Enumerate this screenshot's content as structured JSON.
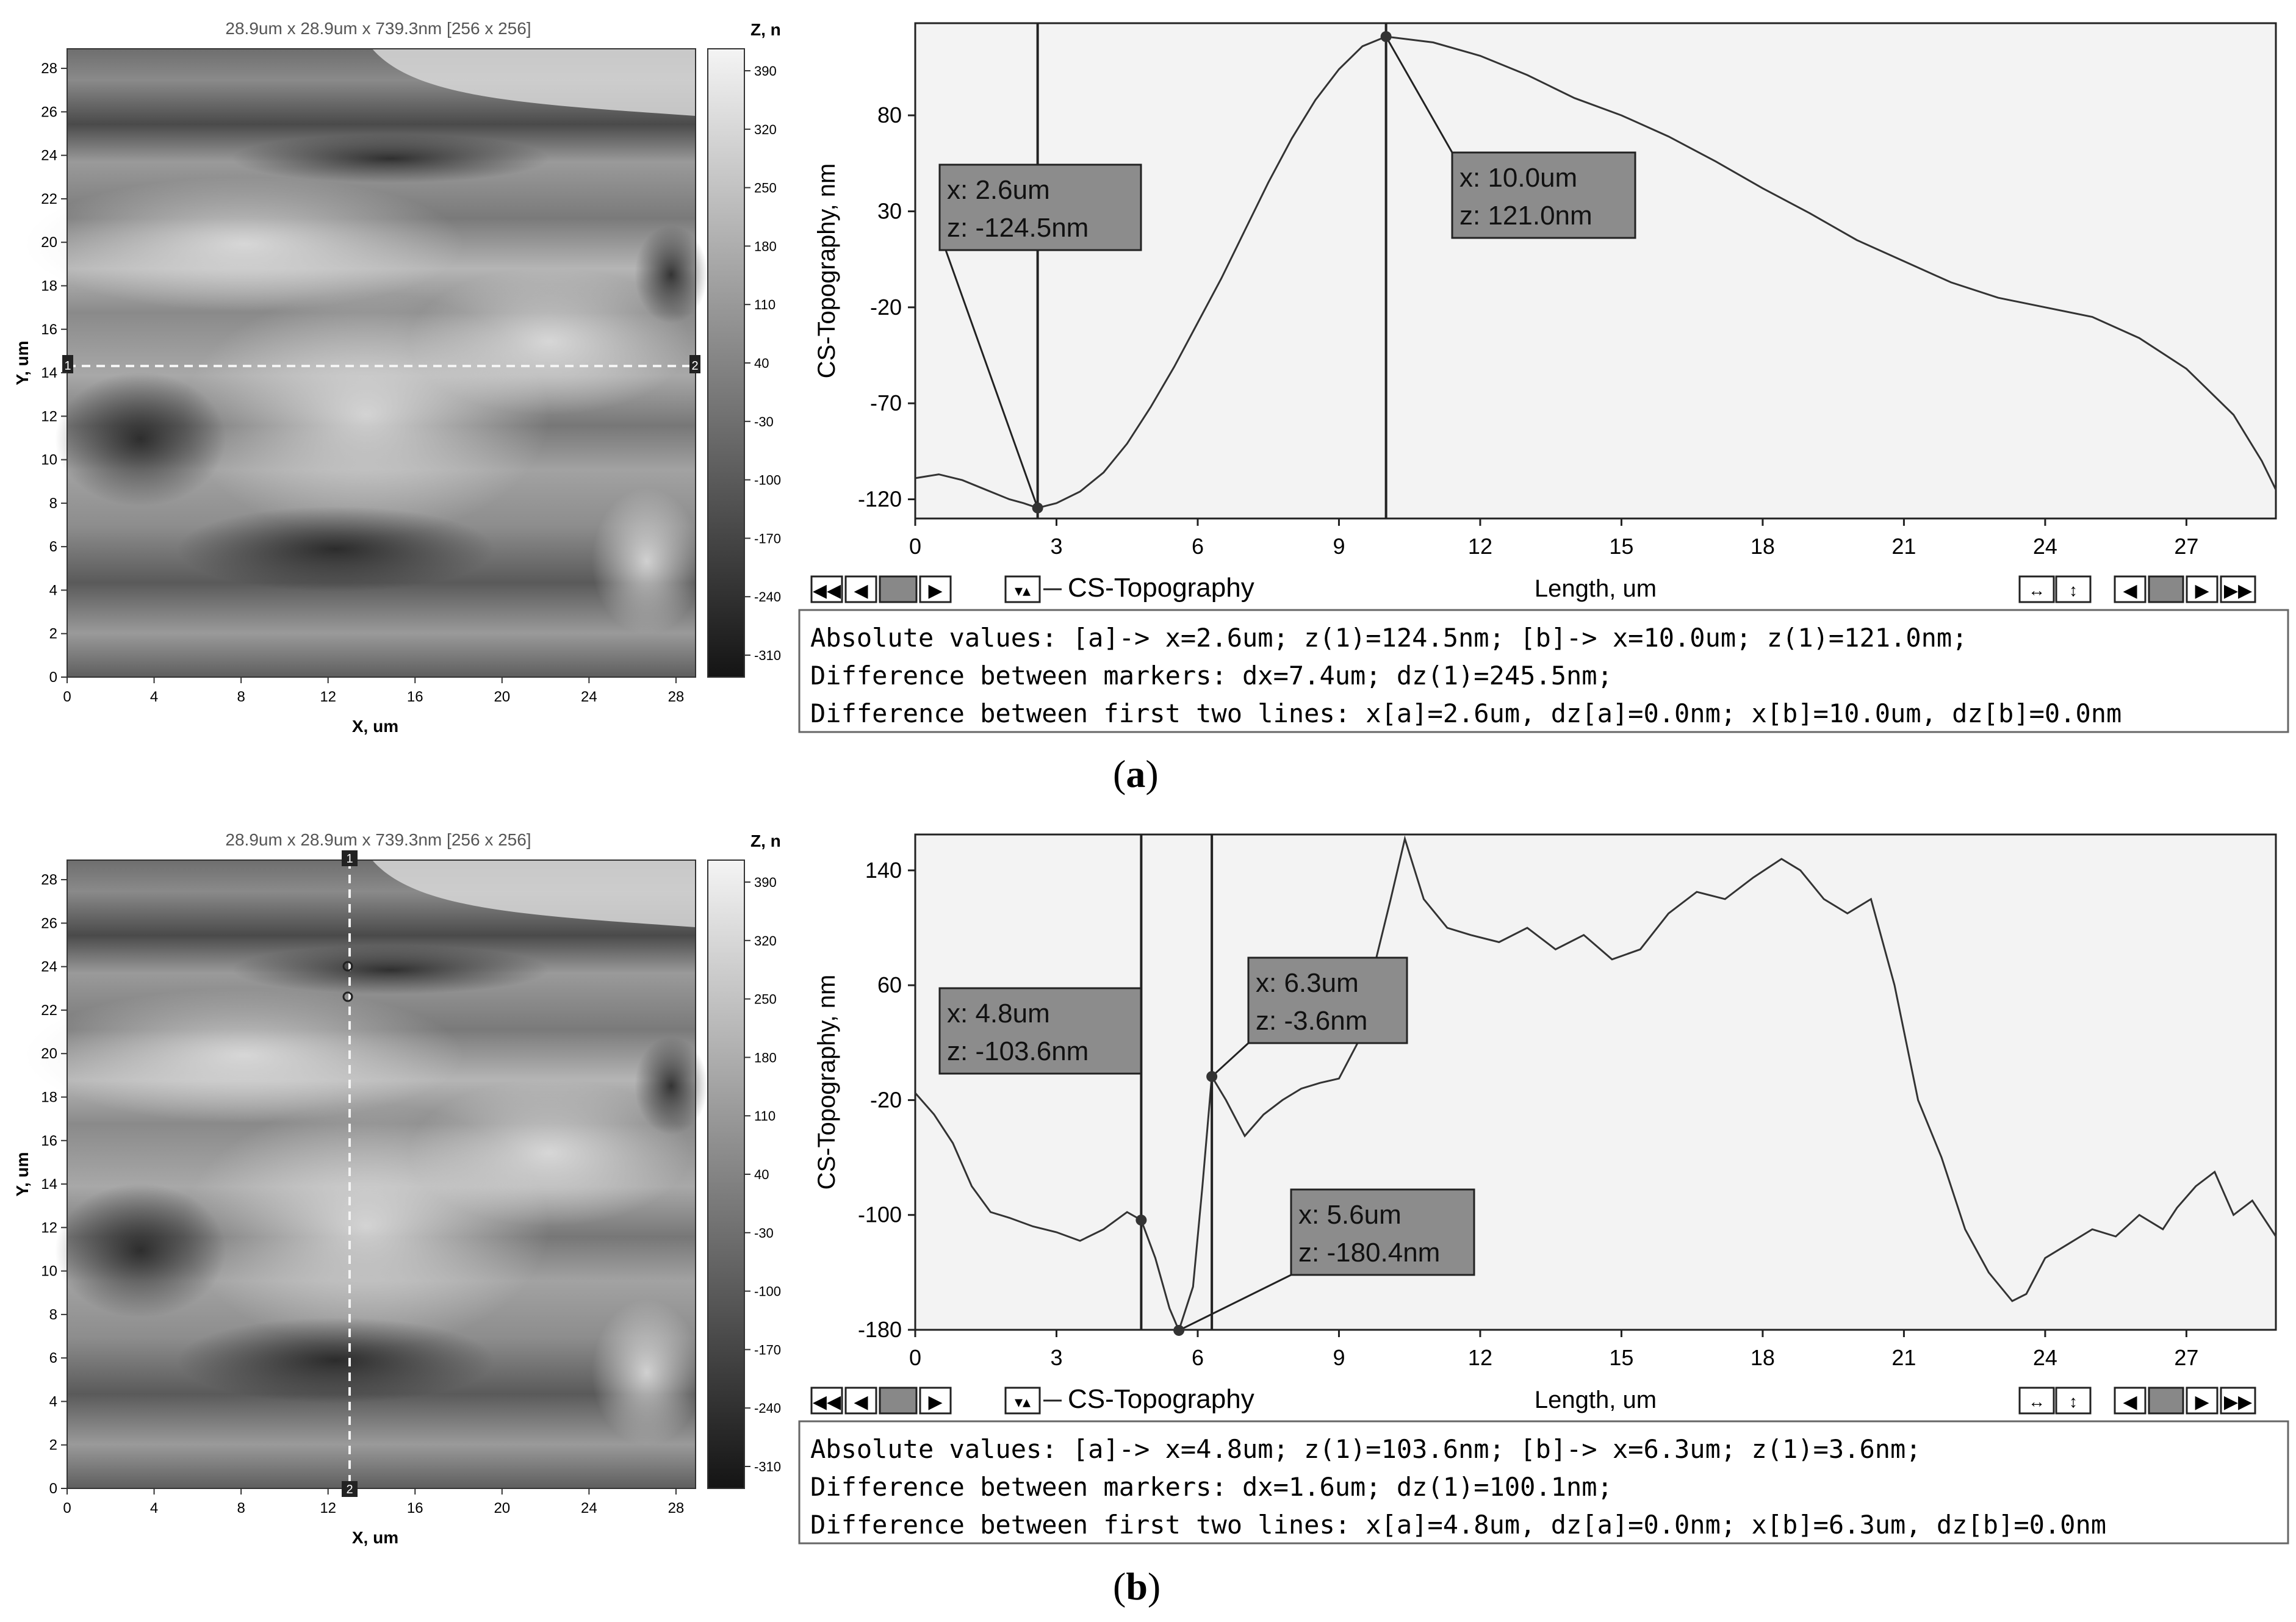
{
  "panels": [
    {
      "id": "a",
      "caption": {
        "open": "(",
        "letter": "a",
        "close": ")"
      },
      "map": {
        "header": "28.9um x 28.9um x 739.3nm [256 x 256]",
        "x_label": "X, um",
        "y_label": "Y, um",
        "x_ticks": [
          "0",
          "4",
          "8",
          "12",
          "16",
          "20",
          "24",
          "28"
        ],
        "y_ticks": [
          "0",
          "2",
          "4",
          "6",
          "8",
          "10",
          "12",
          "14",
          "16",
          "18",
          "20",
          "22",
          "24",
          "26",
          "28"
        ],
        "colorbar_title": "Z, nm",
        "colorbar_ticks": [
          "390",
          "320",
          "250",
          "180",
          "110",
          "40",
          "-30",
          "-100",
          "-170",
          "-240",
          "-310"
        ],
        "scanline": {
          "orientation": "horizontal",
          "position_um": 14.2,
          "start_marker": "1",
          "end_marker": "2"
        }
      },
      "chart_data": {
        "type": "line",
        "ylabel": "CS-Topography, nm",
        "xlabel": "Length, um",
        "xlim": [
          0,
          28.9
        ],
        "ylim": [
          -130,
          128
        ],
        "x_ticks": [
          0,
          3,
          6,
          9,
          12,
          15,
          18,
          21,
          24,
          27
        ],
        "y_ticks": [
          -120,
          -70,
          -20,
          30,
          80
        ],
        "legend": "CS-Topography",
        "series": [
          {
            "x": [
              0,
              0.5,
              1,
              1.5,
              2,
              2.3,
              2.6,
              3,
              3.5,
              4,
              4.5,
              5,
              5.5,
              6,
              6.5,
              7,
              7.5,
              8,
              8.5,
              9,
              9.5,
              10,
              11,
              12,
              13,
              14,
              15,
              16,
              17,
              18,
              19,
              20,
              21,
              22,
              23,
              24,
              25,
              26,
              27,
              28,
              28.6,
              28.9
            ],
            "y": [
              -109,
              -107,
              -110,
              -115,
              -120,
              -122,
              -124.5,
              -122,
              -116,
              -106,
              -91,
              -72,
              -51,
              -28,
              -5,
              20,
              45,
              68,
              88,
              104,
              116,
              121,
              118,
              111,
              101,
              89,
              80,
              69,
              56,
              42,
              29,
              15,
              4,
              -7,
              -15,
              -20,
              -25,
              -36,
              -52,
              -76,
              -100,
              -115
            ]
          }
        ],
        "markers": [
          {
            "x": 2.6,
            "z": -124.5,
            "label_x": "x: 2.6um",
            "label_z": "z: -124.5nm"
          },
          {
            "x": 10.0,
            "z": 121.0,
            "label_x": "x: 10.0um",
            "label_z": "z: 121.0nm"
          }
        ]
      },
      "info": {
        "line1": "Absolute values: [a]-> x=2.6um;  z(1)=124.5nm;    [b]-> x=10.0um;  z(1)=121.0nm;",
        "line2": "Difference between markers: dx=7.4um; dz(1)=245.5nm;",
        "line3": "Difference between first two lines: x[a]=2.6um, dz[a]=0.0nm;   x[b]=10.0um, dz[b]=0.0nm"
      }
    },
    {
      "id": "b",
      "caption": {
        "open": "(",
        "letter": "b",
        "close": ")"
      },
      "map": {
        "header": "28.9um x 28.9um x 739.3nm [256 x 256]",
        "x_label": "X, um",
        "y_label": "Y, um",
        "x_ticks": [
          "0",
          "4",
          "8",
          "12",
          "16",
          "20",
          "24",
          "28"
        ],
        "y_ticks": [
          "0",
          "2",
          "4",
          "6",
          "8",
          "10",
          "12",
          "14",
          "16",
          "18",
          "20",
          "22",
          "24",
          "26",
          "28"
        ],
        "colorbar_title": "Z, nm",
        "colorbar_ticks": [
          "390",
          "320",
          "250",
          "180",
          "110",
          "40",
          "-30",
          "-100",
          "-170",
          "-240",
          "-310"
        ],
        "scanline": {
          "orientation": "vertical",
          "position_um": 13.0,
          "start_marker": "1",
          "end_marker": "2"
        }
      },
      "chart_data": {
        "type": "line",
        "ylabel": "CS-Topography, nm",
        "xlabel": "Length, um",
        "xlim": [
          0,
          28.9
        ],
        "ylim": [
          -180,
          165
        ],
        "x_ticks": [
          0,
          3,
          6,
          9,
          12,
          15,
          18,
          21,
          24,
          27
        ],
        "y_ticks": [
          -180,
          -100,
          -20,
          60,
          140
        ],
        "legend": "CS-Topography",
        "series": [
          {
            "x": [
              0,
              0.4,
              0.8,
              1.2,
              1.6,
              2,
              2.5,
              3,
              3.5,
              4,
              4.5,
              4.8,
              5.1,
              5.4,
              5.6,
              5.9,
              6.1,
              6.3,
              6.6,
              7,
              7.4,
              7.8,
              8.2,
              8.6,
              9,
              9.4,
              9.8,
              10.1,
              10.4,
              10.8,
              11.3,
              11.8,
              12.4,
              13,
              13.6,
              14.2,
              14.8,
              15.4,
              16,
              16.6,
              17.2,
              17.8,
              18.4,
              18.8,
              19.3,
              19.8,
              20.3,
              20.8,
              21.3,
              21.8,
              22.3,
              22.8,
              23.3,
              23.6,
              24,
              24.5,
              25,
              25.5,
              26,
              26.5,
              26.8,
              27.2,
              27.6,
              28,
              28.4,
              28.9
            ],
            "y": [
              -15,
              -30,
              -50,
              -80,
              -98,
              -102,
              -108,
              -112,
              -118,
              -110,
              -98,
              -103.6,
              -130,
              -165,
              -180.4,
              -150,
              -80,
              -3.6,
              -20,
              -45,
              -30,
              -20,
              -12,
              -8,
              -5,
              20,
              80,
              120,
              162,
              120,
              100,
              95,
              90,
              100,
              85,
              95,
              78,
              85,
              110,
              125,
              120,
              135,
              148,
              140,
              120,
              110,
              120,
              60,
              -20,
              -60,
              -110,
              -140,
              -160,
              -155,
              -130,
              -120,
              -110,
              -115,
              -100,
              -110,
              -95,
              -80,
              -70,
              -100,
              -90,
              -115
            ]
          }
        ],
        "markers": [
          {
            "x": 4.8,
            "z": -103.6,
            "label_x": "x: 4.8um",
            "label_z": "z: -103.6nm"
          },
          {
            "x": 6.3,
            "z": -3.6,
            "label_x": "x: 6.3um",
            "label_z": "z: -3.6nm"
          },
          {
            "x": 5.6,
            "z": -180.4,
            "label_x": "x: 5.6um",
            "label_z": "z: -180.4nm"
          }
        ]
      },
      "info": {
        "line1": "Absolute values: [a]-> x=4.8um;  z(1)=103.6nm;    [b]-> x=6.3um;  z(1)=3.6nm;",
        "line2": "Difference between markers: dx=1.6um; dz(1)=100.1nm;",
        "line3": "Difference between first two lines: x[a]=4.8um, dz[a]=0.0nm;   x[b]=6.3um, dz[b]=0.0nm"
      }
    }
  ]
}
